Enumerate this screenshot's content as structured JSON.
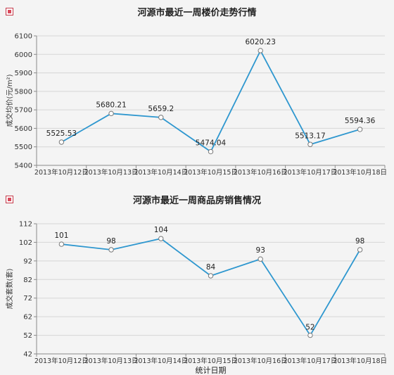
{
  "chart_data": [
    {
      "type": "line",
      "title": "河源市最近一周楼价走势行情",
      "xlabel": "",
      "ylabel": "成交均价(元/m²)",
      "categories": [
        "2013年10月12日",
        "2013年10月13日",
        "2013年10月14日",
        "2013年10月15日",
        "2013年10月16日",
        "2013年10月17日",
        "2013年10月18日"
      ],
      "series": [
        {
          "values": [
            5525.53,
            5680.21,
            5659.2,
            5474.04,
            6020.23,
            5513.17,
            5594.36
          ],
          "labels": [
            "5525.53",
            "5680.21",
            "5659.2",
            "5474.04",
            "6020.23",
            "5513.17",
            "5594.36"
          ]
        }
      ],
      "ylim": [
        5400,
        6100
      ],
      "yticks": [
        5400,
        5500,
        5600,
        5700,
        5800,
        5900,
        6000,
        6100
      ],
      "grid": "horizontal",
      "line_color": "#2e97cf"
    },
    {
      "type": "line",
      "title": "河源市最近一周商品房销售情况",
      "xlabel": "统计日期",
      "ylabel": "成交套数(套)",
      "categories": [
        "2013年10月12日",
        "2013年10月13日",
        "2013年10月14日",
        "2013年10月15日",
        "2013年10月16日",
        "2013年10月17日",
        "2013年10月18日"
      ],
      "series": [
        {
          "values": [
            101,
            98,
            104,
            84,
            93,
            52,
            98
          ],
          "labels": [
            "101",
            "98",
            "104",
            "84",
            "93",
            "52",
            "98"
          ]
        }
      ],
      "ylim": [
        42,
        112
      ],
      "yticks": [
        42,
        52,
        62,
        72,
        82,
        92,
        102,
        112
      ],
      "grid": "horizontal",
      "line_color": "#2e97cf"
    }
  ]
}
